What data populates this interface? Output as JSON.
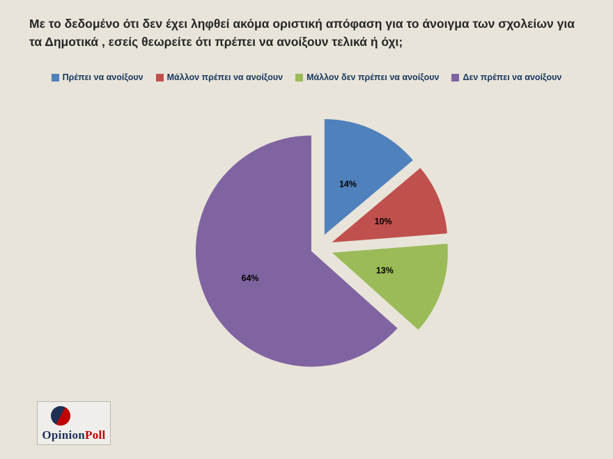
{
  "title": "Με το δεδομένο ότι δεν έχει ληφθεί ακόμα οριστική απόφαση για το άνοιγμα των σχολείων για τα Δημοτικά , εσείς θεωρείτε ότι πρέπει να ανοίξουν τελικά  ή όχι;",
  "chart_data": {
    "type": "pie",
    "title": "",
    "legend_position": "top",
    "exploded": true,
    "labels_format": "percent",
    "series": [
      {
        "label": "Πρέπει να ανοίξουν",
        "value": 14,
        "color": "#4f81bd"
      },
      {
        "label": "Μάλλον πρέπει να ανοίξουν",
        "value": 10,
        "color": "#c0504d"
      },
      {
        "label": "Μάλλον δεν πρέπει να ανοίξουν",
        "value": 13,
        "color": "#9bbb59"
      },
      {
        "label": "Δεν πρέπει να ανοίξουν",
        "value": 64,
        "color": "#8064a2"
      }
    ]
  },
  "logo": {
    "text_primary": "Opinion",
    "text_secondary": "Poll",
    "primary_color": "#1f3057",
    "secondary_color": "#c00000"
  },
  "colors": {
    "background": "#e8e4d9"
  }
}
